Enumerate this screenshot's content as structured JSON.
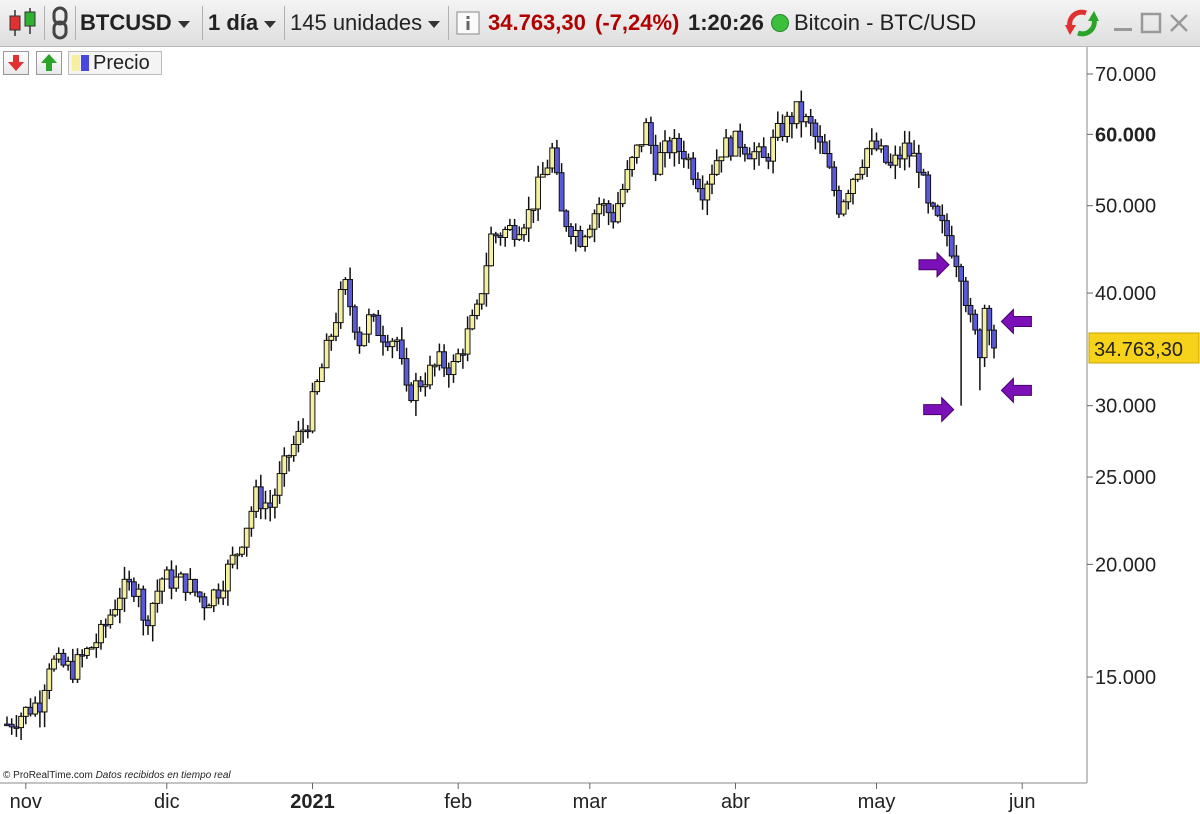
{
  "toolbar": {
    "symbol": "BTCUSD",
    "timeframe": "1 día",
    "units": "145 unidades",
    "price": "34.763,30",
    "change": "(-7,24%)",
    "time": "1:20:26",
    "instrument_name": "Bitcoin - BTC/USD",
    "icons": [
      "candlestick-chart-icon",
      "link-icon",
      "info-icon",
      "status-dot-icon",
      "refresh-icon",
      "minimize-icon",
      "maximize-icon",
      "close-icon"
    ]
  },
  "subbar": {
    "indicator_label": "Precio"
  },
  "footer": {
    "credit": "© ProRealTime.com",
    "realtime": "Datos recibidos en tiempo real"
  },
  "colors": {
    "up_candle": "#f5f0a0",
    "down_candle": "#5a5ad8",
    "price_tag": "#f7d21a",
    "arrows": "#7b10b8",
    "price_up_text": "#b00000"
  },
  "chart_data": {
    "type": "candlestick",
    "y_scale": "log",
    "ylim": [
      12000,
      78000
    ],
    "y_ticks": [
      {
        "value": 70000,
        "label": "70.000",
        "bold": false
      },
      {
        "value": 60000,
        "label": "60.000",
        "bold": true
      },
      {
        "value": 50000,
        "label": "50.000",
        "bold": false
      },
      {
        "value": 40000,
        "label": "40.000",
        "bold": false
      },
      {
        "value": 30000,
        "label": "30.000",
        "bold": false
      },
      {
        "value": 25000,
        "label": "25.000",
        "bold": false
      },
      {
        "value": 20000,
        "label": "20.000",
        "bold": false
      },
      {
        "value": 15000,
        "label": "15.000",
        "bold": false
      }
    ],
    "x_ticks": [
      {
        "date": "2020-11-01",
        "label": "nov",
        "bold": false
      },
      {
        "date": "2020-12-01",
        "label": "dic",
        "bold": false
      },
      {
        "date": "2021-01-01",
        "label": "2021",
        "bold": true
      },
      {
        "date": "2021-02-01",
        "label": "feb",
        "bold": false
      },
      {
        "date": "2021-03-01",
        "label": "mar",
        "bold": false
      },
      {
        "date": "2021-04-01",
        "label": "abr",
        "bold": false
      },
      {
        "date": "2021-05-01",
        "label": "may",
        "bold": false
      },
      {
        "date": "2021-06-01",
        "label": "jun",
        "bold": false
      }
    ],
    "first_date": "2020-10-28",
    "last_price": {
      "value": 34763.3,
      "label": "34.763,30"
    },
    "close_path": [
      [
        "2020-10-28",
        13300
      ],
      [
        "2020-11-04",
        14100
      ],
      [
        "2020-11-06",
        15600
      ],
      [
        "2020-11-11",
        15300
      ],
      [
        "2020-11-17",
        16700
      ],
      [
        "2020-11-21",
        18600
      ],
      [
        "2020-11-25",
        19100
      ],
      [
        "2020-11-26",
        17100
      ],
      [
        "2020-11-30",
        19300
      ],
      [
        "2020-12-05",
        19100
      ],
      [
        "2020-12-09",
        18200
      ],
      [
        "2020-12-12",
        18800
      ],
      [
        "2020-12-16",
        20700
      ],
      [
        "2020-12-20",
        23800
      ],
      [
        "2020-12-23",
        23200
      ],
      [
        "2020-12-27",
        26500
      ],
      [
        "2020-12-31",
        28900
      ],
      [
        "2021-01-03",
        33000
      ],
      [
        "2021-01-07",
        39400
      ],
      [
        "2021-01-08",
        40600
      ],
      [
        "2021-01-11",
        35500
      ],
      [
        "2021-01-13",
        37300
      ],
      [
        "2021-01-16",
        36100
      ],
      [
        "2021-01-19",
        35500
      ],
      [
        "2021-01-21",
        30800
      ],
      [
        "2021-01-25",
        32300
      ],
      [
        "2021-01-28",
        33500
      ],
      [
        "2021-01-31",
        33100
      ],
      [
        "2021-02-05",
        38000
      ],
      [
        "2021-02-08",
        46200
      ],
      [
        "2021-02-13",
        47300
      ],
      [
        "2021-02-16",
        49000
      ],
      [
        "2021-02-21",
        57500
      ],
      [
        "2021-02-23",
        48800
      ],
      [
        "2021-02-27",
        46200
      ],
      [
        "2021-03-03",
        50300
      ],
      [
        "2021-03-06",
        48700
      ],
      [
        "2021-03-10",
        55800
      ],
      [
        "2021-03-13",
        61000
      ],
      [
        "2021-03-15",
        55800
      ],
      [
        "2021-03-18",
        58200
      ],
      [
        "2021-03-21",
        57500
      ],
      [
        "2021-03-25",
        52300
      ],
      [
        "2021-03-29",
        57900
      ],
      [
        "2021-04-02",
        59000
      ],
      [
        "2021-04-07",
        56000
      ],
      [
        "2021-04-10",
        60000
      ],
      [
        "2021-04-14",
        63500
      ],
      [
        "2021-04-17",
        61000
      ],
      [
        "2021-04-20",
        56500
      ],
      [
        "2021-04-23",
        50000
      ],
      [
        "2021-04-26",
        54000
      ],
      [
        "2021-04-29",
        57800
      ],
      [
        "2021-05-01",
        57800
      ],
      [
        "2021-05-04",
        55000
      ],
      [
        "2021-05-07",
        57800
      ],
      [
        "2021-05-10",
        55800
      ],
      [
        "2021-05-12",
        49500
      ],
      [
        "2021-05-16",
        46400
      ],
      [
        "2021-05-19",
        42500
      ],
      [
        "2021-05-21",
        37000
      ],
      [
        "2021-05-23",
        34700
      ],
      [
        "2021-05-24",
        38700
      ],
      [
        "2021-05-25",
        37500
      ],
      [
        "2021-05-26",
        34763
      ]
    ],
    "notable_wicks": [
      {
        "date": "2021-05-19",
        "low": 30000
      },
      {
        "date": "2021-05-23",
        "low": 31200
      }
    ],
    "annotations": [
      {
        "type": "arrow-right",
        "date": "2021-05-16",
        "price": 43000
      },
      {
        "type": "arrow-left",
        "date": "2021-05-28",
        "price": 37200
      },
      {
        "type": "arrow-right",
        "date": "2021-05-17",
        "price": 29700
      },
      {
        "type": "arrow-left",
        "date": "2021-05-28",
        "price": 31200
      }
    ]
  }
}
